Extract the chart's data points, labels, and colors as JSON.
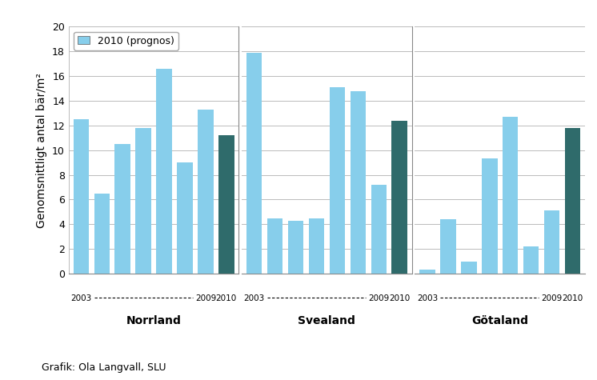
{
  "ylabel": "Genomsnittligt antal bär/m²",
  "footnote": "Grafik: Ola Langvall, SLU",
  "legend_label": "2010 (prognos)",
  "ylim": [
    0,
    20
  ],
  "yticks": [
    0,
    2,
    4,
    6,
    8,
    10,
    12,
    14,
    16,
    18,
    20
  ],
  "regions": [
    "Norrland",
    "Svealand",
    "Götaland"
  ],
  "year_label_start": "2003",
  "year_label_end_1": "2009",
  "year_label_end_2": "2010",
  "norrland_values": [
    12.5,
    6.5,
    10.5,
    11.8,
    16.6,
    9.0,
    13.3,
    11.2
  ],
  "svealand_values": [
    17.9,
    4.5,
    4.3,
    4.5,
    15.1,
    14.8,
    7.2,
    12.4
  ],
  "gotaland_values": [
    0.3,
    4.4,
    1.0,
    9.3,
    12.7,
    2.2,
    5.1,
    11.8
  ],
  "color_light": "#87CEEB",
  "color_dark": "#2F6B6B",
  "bar_width": 0.75,
  "background_color": "#ffffff",
  "grid_color": "#bbbbbb",
  "label_fontsize": 10,
  "tick_fontsize": 9,
  "footnote_fontsize": 9
}
